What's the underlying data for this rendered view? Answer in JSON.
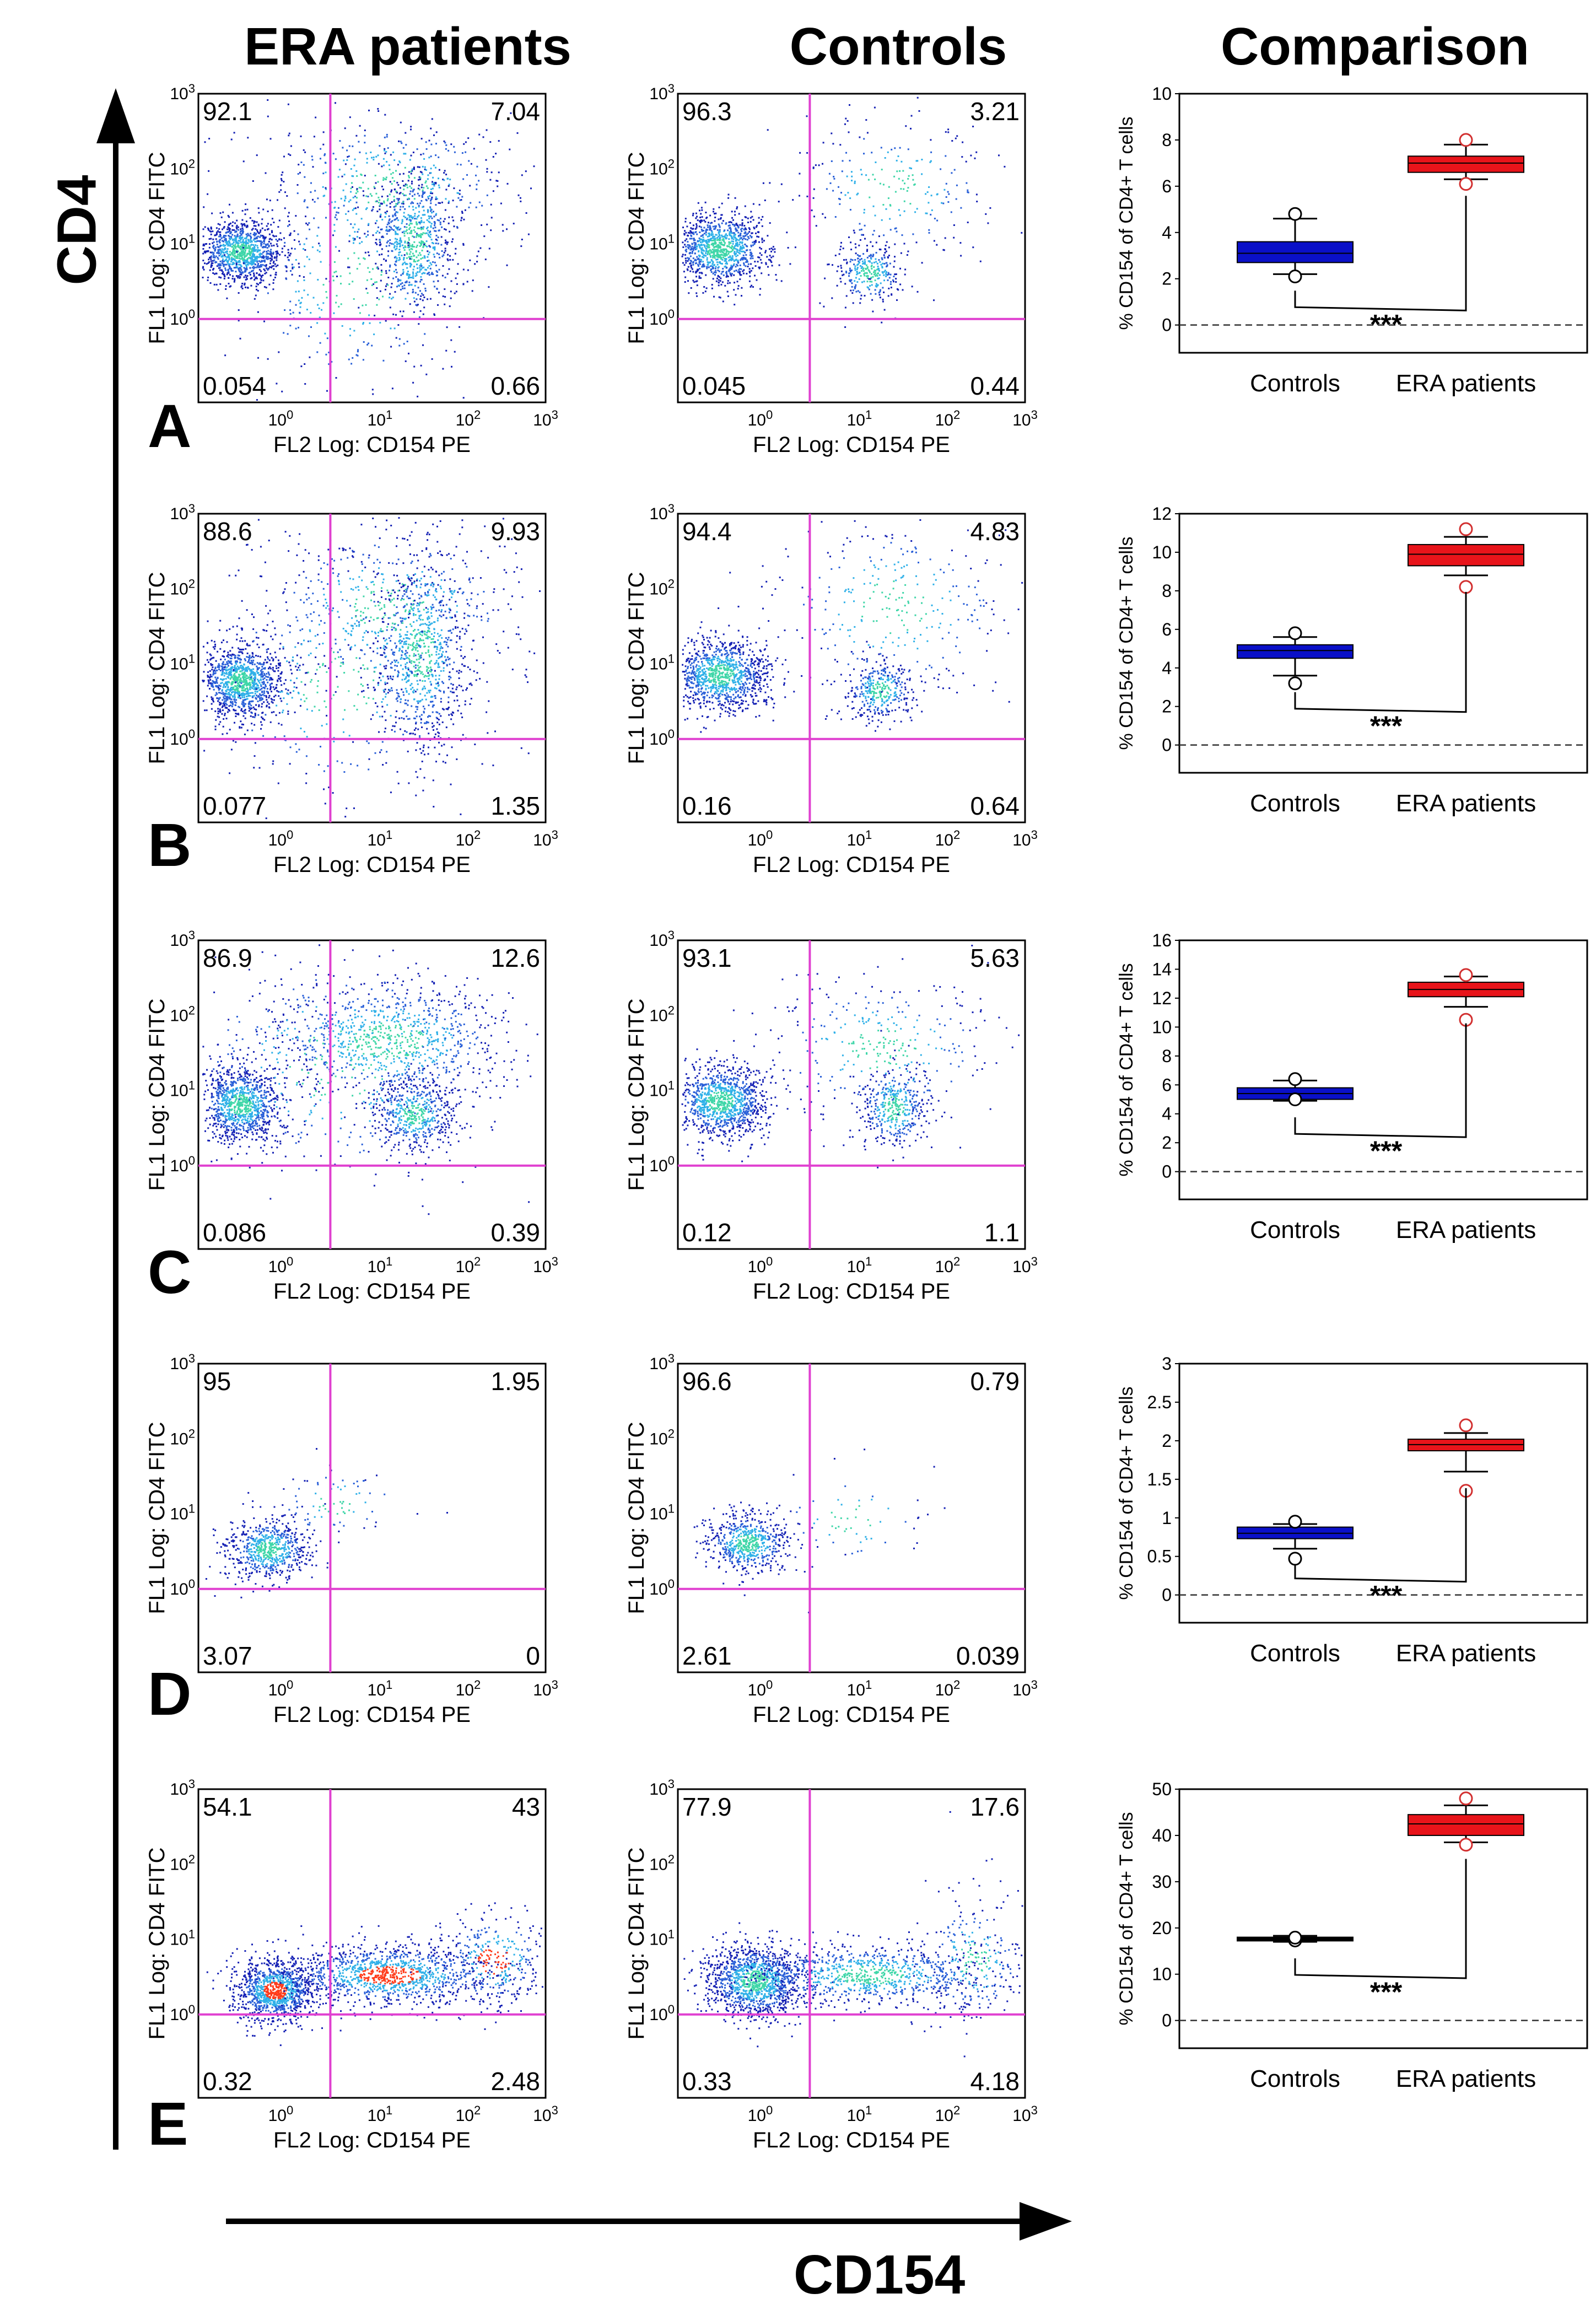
{
  "titles": {
    "era": "ERA patients",
    "controls": "Controls",
    "comparison": "Comparison"
  },
  "axes": {
    "vertical": "CD4",
    "horizontal": "CD154"
  },
  "flow_axes": {
    "x_label": "FL2 Log: CD154 PE",
    "y_label": "FL1 Log: CD4 FITC",
    "x_ticks": [
      "10^0",
      "10^1",
      "10^2",
      "10^3"
    ],
    "y_ticks": [
      "10^0",
      "10^1",
      "10^2",
      "10^3"
    ]
  },
  "comparison_axes": {
    "y_label": "% CD154 of CD4+ T cells",
    "categories": [
      "Controls",
      "ERA patients"
    ],
    "significance": "***"
  },
  "colors": {
    "quadrant": "#e040d0",
    "controls_box": "#0a10c8",
    "era_box": "#e8141a",
    "e_controls_box": "#000000"
  },
  "chart_data": {
    "type": "scatter",
    "rows": [
      {
        "label": "A",
        "era_quadrants": {
          "ul": "92.1",
          "ur": "7.04",
          "ll": "0.054",
          "lr": "0.66"
        },
        "controls_quadrants": {
          "ul": "96.3",
          "ur": "3.21",
          "ll": "0.045",
          "lr": "0.44"
        },
        "comparison": {
          "type": "box",
          "ylim": [
            0,
            10
          ],
          "yticks": [
            0,
            2,
            4,
            6,
            8,
            10
          ],
          "controls": {
            "q1": 2.7,
            "median": 3.1,
            "q3": 3.6,
            "whisker_low": 2.2,
            "whisker_high": 4.6,
            "outliers": [
              2.1,
              4.8
            ]
          },
          "era": {
            "q1": 6.6,
            "median": 7.0,
            "q3": 7.3,
            "whisker_low": 6.3,
            "whisker_high": 7.8,
            "outliers": [
              6.1,
              8.0
            ]
          }
        }
      },
      {
        "label": "B",
        "era_quadrants": {
          "ul": "88.6",
          "ur": "9.93",
          "ll": "0.077",
          "lr": "1.35"
        },
        "controls_quadrants": {
          "ul": "94.4",
          "ur": "4.83",
          "ll": "0.16",
          "lr": "0.64"
        },
        "comparison": {
          "type": "box",
          "ylim": [
            0,
            12
          ],
          "yticks": [
            0,
            2,
            4,
            6,
            8,
            10,
            12
          ],
          "controls": {
            "q1": 4.5,
            "median": 4.9,
            "q3": 5.2,
            "whisker_low": 3.6,
            "whisker_high": 5.6,
            "outliers": [
              3.2,
              5.8
            ]
          },
          "era": {
            "q1": 9.3,
            "median": 9.9,
            "q3": 10.4,
            "whisker_low": 8.8,
            "whisker_high": 10.8,
            "outliers": [
              8.2,
              11.2
            ]
          }
        }
      },
      {
        "label": "C",
        "era_quadrants": {
          "ul": "86.9",
          "ur": "12.6",
          "ll": "0.086",
          "lr": "0.39"
        },
        "controls_quadrants": {
          "ul": "93.1",
          "ur": "5.63",
          "ll": "0.12",
          "lr": "1.1"
        },
        "comparison": {
          "type": "box",
          "ylim": [
            0,
            16
          ],
          "yticks": [
            0,
            2,
            4,
            6,
            8,
            10,
            12,
            14,
            16
          ],
          "controls": {
            "q1": 5.0,
            "median": 5.4,
            "q3": 5.8,
            "whisker_low": 4.9,
            "whisker_high": 6.3,
            "outliers": [
              5.0,
              6.4
            ]
          },
          "era": {
            "q1": 12.1,
            "median": 12.6,
            "q3": 13.1,
            "whisker_low": 11.4,
            "whisker_high": 13.5,
            "outliers": [
              10.5,
              13.6
            ]
          }
        }
      },
      {
        "label": "D",
        "era_quadrants": {
          "ul": "95",
          "ur": "1.95",
          "ll": "3.07",
          "lr": "0"
        },
        "controls_quadrants": {
          "ul": "96.6",
          "ur": "0.79",
          "ll": "2.61",
          "lr": "0.039"
        },
        "comparison": {
          "type": "box",
          "ylim": [
            0,
            3
          ],
          "yticks": [
            0,
            0.5,
            1,
            1.5,
            2,
            2.5,
            3
          ],
          "controls": {
            "q1": 0.73,
            "median": 0.8,
            "q3": 0.88,
            "whisker_low": 0.6,
            "whisker_high": 0.92,
            "outliers": [
              0.47,
              0.95
            ]
          },
          "era": {
            "q1": 1.87,
            "median": 1.95,
            "q3": 2.02,
            "whisker_low": 1.6,
            "whisker_high": 2.1,
            "outliers": [
              1.35,
              2.2
            ]
          }
        }
      },
      {
        "label": "E",
        "era_quadrants": {
          "ul": "54.1",
          "ur": "43",
          "ll": "0.32",
          "lr": "2.48"
        },
        "controls_quadrants": {
          "ul": "77.9",
          "ur": "17.6",
          "ll": "0.33",
          "lr": "4.18"
        },
        "comparison": {
          "type": "box",
          "ylim": [
            0,
            50
          ],
          "yticks": [
            0,
            10,
            20,
            30,
            40,
            50
          ],
          "controls": {
            "q1": 17.2,
            "median": 17.6,
            "q3": 18.0,
            "whisker_low": 17.0,
            "whisker_high": 18.3,
            "outliers": [
              17.3,
              17.9
            ]
          },
          "era": {
            "q1": 40.0,
            "median": 42.5,
            "q3": 44.5,
            "whisker_low": 38.5,
            "whisker_high": 46.5,
            "outliers": [
              38.0,
              48.0
            ]
          }
        }
      }
    ]
  }
}
